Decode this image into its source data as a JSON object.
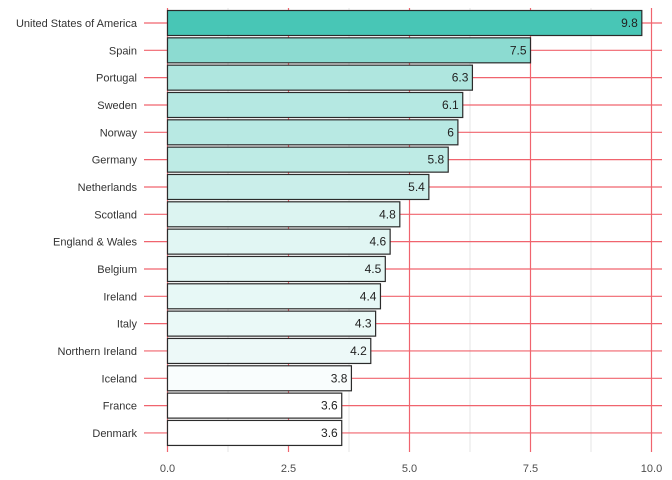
{
  "chart_data": {
    "type": "bar",
    "orientation": "horizontal",
    "title": "",
    "xlabel": "",
    "ylabel": "",
    "xlim": [
      0,
      10
    ],
    "x_ticks": [
      0,
      2.5,
      5,
      7.5,
      10
    ],
    "x_tick_labels": [
      "0.0",
      "2.5",
      "5.0",
      "7.5",
      "10.0"
    ],
    "categories": [
      "United States of America",
      "Spain",
      "Portugal",
      "Sweden",
      "Norway",
      "Germany",
      "Netherlands",
      "Scotland",
      "England & Wales",
      "Belgium",
      "Ireland",
      "Italy",
      "Northern Ireland",
      "Iceland",
      "France",
      "Denmark"
    ],
    "values": [
      9.8,
      7.5,
      6.3,
      6.1,
      6,
      5.8,
      5.4,
      4.8,
      4.6,
      4.5,
      4.4,
      4.3,
      4.2,
      3.8,
      3.6,
      3.6
    ],
    "value_labels": [
      "9.8",
      "7.5",
      "6.3",
      "6.1",
      "6",
      "5.8",
      "5.4",
      "4.8",
      "4.6",
      "4.5",
      "4.4",
      "4.3",
      "4.2",
      "3.8",
      "3.6",
      "3.6"
    ],
    "grid": true,
    "legend": "none",
    "colors": {
      "fill_high": "#48c6b6",
      "fill_low": "#ffffff",
      "bar_outline": "#2b2b2b",
      "grid_major": "#f0646e",
      "grid_minor": "#e6e6e6"
    }
  }
}
